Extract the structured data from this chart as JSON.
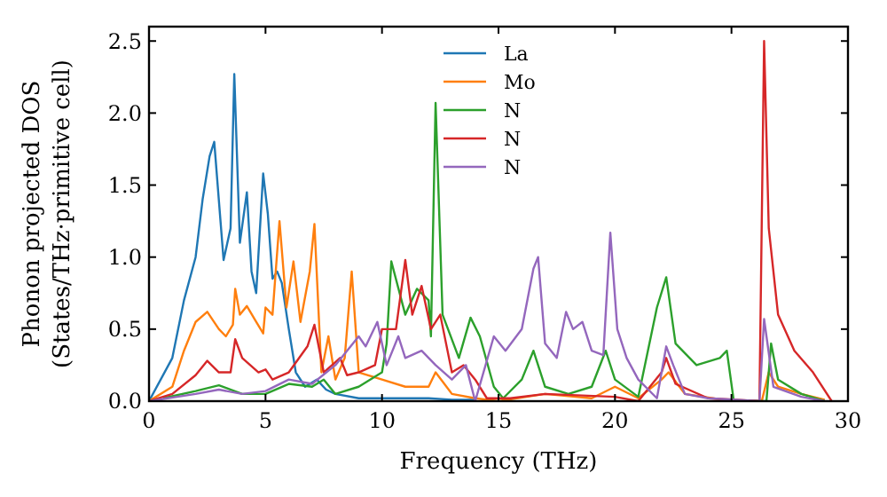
{
  "chart_data": {
    "type": "line",
    "xlabel": "Frequency (THz)",
    "ylabel": "Phonon projected DOS\n(States/THz·primitive cell)",
    "xlim": [
      0,
      30
    ],
    "ylim": [
      0,
      2.6
    ],
    "xticks": [
      0,
      5,
      10,
      15,
      20,
      25,
      30
    ],
    "yticks": [
      {
        "value": 0,
        "label": "0.0"
      },
      {
        "value": 0.5,
        "label": "0.5"
      },
      {
        "value": 1,
        "label": "1.0"
      },
      {
        "value": 1.5,
        "label": "1.5"
      },
      {
        "value": 2,
        "label": "2.0"
      },
      {
        "value": 2.5,
        "label": "2.5"
      }
    ],
    "grid": false,
    "legend": "top",
    "line_style": "solid",
    "series": [
      {
        "name": "La",
        "color": "#1f77b4",
        "x": [
          0,
          1,
          1.5,
          2,
          2.3,
          2.6,
          2.8,
          3.2,
          3.5,
          3.66,
          3.9,
          4.2,
          4.4,
          4.6,
          4.9,
          5.1,
          5.3,
          5.5,
          5.7,
          6,
          6.3,
          6.7,
          7.2,
          7.6,
          8,
          9,
          10,
          12,
          13,
          14
        ],
        "values": [
          0,
          0.3,
          0.7,
          1,
          1.4,
          1.7,
          1.8,
          0.98,
          1.2,
          2.27,
          1.1,
          1.45,
          0.9,
          0.75,
          1.58,
          1.3,
          0.85,
          0.9,
          0.82,
          0.5,
          0.2,
          0.1,
          0.15,
          0.08,
          0.05,
          0.02,
          0.02,
          0.02,
          0.01,
          0.01
        ]
      },
      {
        "name": "Mo",
        "color": "#ff7f0e",
        "x": [
          0,
          1,
          1.5,
          2,
          2.5,
          3,
          3.3,
          3.6,
          3.7,
          3.9,
          4.2,
          4.6,
          4.9,
          5,
          5.3,
          5.6,
          5.9,
          6.2,
          6.5,
          6.9,
          7.1,
          7.4,
          7.7,
          8,
          8.4,
          8.7,
          9,
          10,
          11,
          12,
          12.3,
          13,
          14,
          15,
          17,
          19,
          20,
          21,
          22,
          22.3,
          23,
          25,
          26.3,
          26.6,
          27,
          28,
          29
        ],
        "values": [
          0,
          0.1,
          0.35,
          0.55,
          0.62,
          0.5,
          0.45,
          0.53,
          0.78,
          0.6,
          0.66,
          0.55,
          0.47,
          0.65,
          0.6,
          1.25,
          0.65,
          0.97,
          0.55,
          0.9,
          1.23,
          0.2,
          0.45,
          0.15,
          0.3,
          0.9,
          0.2,
          0.15,
          0.1,
          0.1,
          0.2,
          0.05,
          0.02,
          0,
          0.05,
          0.02,
          0.1,
          0.02,
          0.15,
          0.2,
          0.05,
          0,
          0,
          0.2,
          0.1,
          0.05,
          0.01
        ]
      },
      {
        "name": "N",
        "color": "#2ca02c",
        "x": [
          0.6,
          2,
          3,
          4,
          5,
          6,
          7,
          7.5,
          8,
          9,
          10,
          10.2,
          10.4,
          11,
          11.5,
          12,
          12.1,
          12.3,
          12.6,
          13.3,
          13.8,
          14.2,
          14.8,
          15.2,
          16,
          16.5,
          17,
          18,
          19,
          19.6,
          20,
          21,
          21.8,
          22.2,
          22.6,
          23.5,
          24.5,
          24.8,
          25.1,
          26.5,
          26.7,
          27,
          28,
          29
        ],
        "values": [
          0.02,
          0.07,
          0.11,
          0.05,
          0.05,
          0.12,
          0.1,
          0.15,
          0.05,
          0.1,
          0.2,
          0.4,
          0.97,
          0.6,
          0.78,
          0.7,
          0.45,
          2.07,
          0.6,
          0.3,
          0.58,
          0.45,
          0.1,
          0.02,
          0.15,
          0.35,
          0.1,
          0.05,
          0.1,
          0.35,
          0.15,
          0.03,
          0.65,
          0.86,
          0.4,
          0.25,
          0.3,
          0.35,
          0,
          0,
          0.4,
          0.15,
          0.05,
          0
        ]
      },
      {
        "name": "N",
        "color": "#d62728",
        "x": [
          0,
          1,
          2,
          2.5,
          3,
          3.5,
          3.7,
          4,
          4.7,
          5,
          5.3,
          6,
          6.8,
          7.1,
          7.5,
          8.2,
          8.5,
          9,
          9.7,
          10,
          10.6,
          11,
          11.3,
          11.7,
          12.1,
          12.5,
          13,
          13.5,
          14,
          14.5,
          15.5,
          17,
          20,
          21,
          22,
          22.2,
          22.6,
          24,
          26.2,
          26.4,
          26.6,
          27,
          27.7,
          28.5,
          29.3
        ],
        "values": [
          0,
          0.05,
          0.18,
          0.28,
          0.2,
          0.2,
          0.43,
          0.3,
          0.2,
          0.22,
          0.15,
          0.2,
          0.38,
          0.53,
          0.2,
          0.3,
          0.18,
          0.2,
          0.25,
          0.5,
          0.5,
          0.98,
          0.6,
          0.8,
          0.5,
          0.6,
          0.2,
          0.25,
          0.15,
          0.02,
          0.02,
          0.05,
          0.03,
          0,
          0.2,
          0.3,
          0.12,
          0.02,
          0,
          2.5,
          1.2,
          0.6,
          0.35,
          0.2,
          0
        ]
      },
      {
        "name": "N",
        "color": "#9467bd",
        "x": [
          0,
          2,
          3,
          4,
          5,
          6,
          7,
          8,
          9,
          9.3,
          9.8,
          10.2,
          10.7,
          11,
          11.7,
          12.3,
          13,
          13.6,
          14,
          14.8,
          15.3,
          16,
          16.5,
          16.7,
          17,
          17.5,
          17.9,
          18.2,
          18.6,
          19,
          19.5,
          19.8,
          20.1,
          20.5,
          21,
          21.8,
          22.2,
          22.5,
          23,
          24,
          26.2,
          26.4,
          26.8,
          28,
          29
        ],
        "values": [
          0,
          0.05,
          0.08,
          0.05,
          0.07,
          0.15,
          0.12,
          0.25,
          0.45,
          0.38,
          0.55,
          0.25,
          0.45,
          0.3,
          0.35,
          0.25,
          0.15,
          0.25,
          0,
          0.45,
          0.35,
          0.5,
          0.92,
          1,
          0.4,
          0.3,
          0.62,
          0.5,
          0.55,
          0.35,
          0.32,
          1.17,
          0.5,
          0.3,
          0.15,
          0.02,
          0.38,
          0.25,
          0.05,
          0.02,
          0,
          0.57,
          0.1,
          0.03,
          0
        ]
      }
    ]
  }
}
